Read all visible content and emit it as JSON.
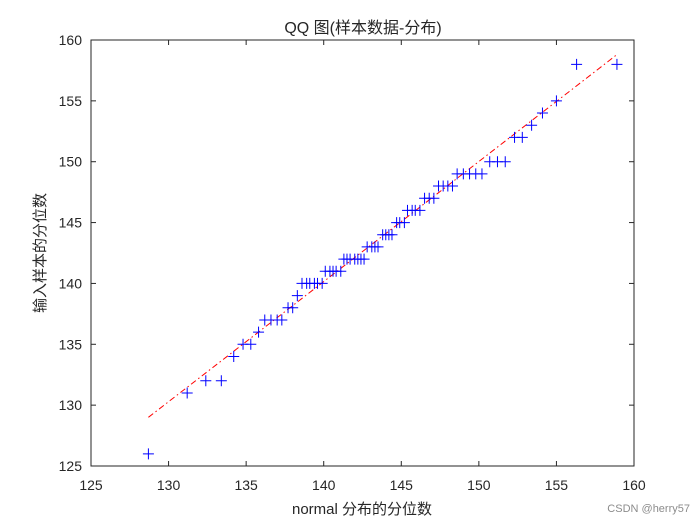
{
  "chart_data": {
    "type": "scatter",
    "title": "QQ 图(样本数据-分布)",
    "xlabel": "normal 分布的分位数",
    "ylabel": "输入样本的分位数",
    "xlim": [
      125,
      160
    ],
    "ylim": [
      125,
      160
    ],
    "xticks": [
      125,
      130,
      135,
      140,
      145,
      150,
      155,
      160
    ],
    "yticks": [
      125,
      130,
      135,
      140,
      145,
      150,
      155,
      160
    ],
    "grid": false,
    "marker": "+",
    "marker_color": "#0000ff",
    "reference_line": {
      "style": "dash-dot",
      "color": "#ff0000",
      "x": [
        128.7,
        158.9
      ],
      "y": [
        129.0,
        158.8
      ]
    },
    "points": {
      "x": [
        128.7,
        131.2,
        132.4,
        133.4,
        134.2,
        134.8,
        135.3,
        135.8,
        136.2,
        136.6,
        137.0,
        137.3,
        137.7,
        138.0,
        138.3,
        138.6,
        138.9,
        139.1,
        139.4,
        139.6,
        139.9,
        140.1,
        140.4,
        140.6,
        140.8,
        141.1,
        141.3,
        141.5,
        141.7,
        142.0,
        142.2,
        142.4,
        142.6,
        142.8,
        143.1,
        143.3,
        143.5,
        143.8,
        144.0,
        144.2,
        144.4,
        144.7,
        144.9,
        145.2,
        145.4,
        145.7,
        145.9,
        146.2,
        146.5,
        146.8,
        147.1,
        147.4,
        147.7,
        148.0,
        148.3,
        148.6,
        149.0,
        149.4,
        149.8,
        150.2,
        150.7,
        151.2,
        151.7,
        152.3,
        152.8,
        153.4,
        154.1,
        155.0,
        156.3,
        158.9
      ],
      "y": [
        126,
        131,
        132,
        132,
        134,
        135,
        135,
        136,
        137,
        137,
        137,
        137,
        138,
        138,
        139,
        140,
        140,
        140,
        140,
        140,
        140,
        141,
        141,
        141,
        141,
        141,
        142,
        142,
        142,
        142,
        142,
        142,
        142,
        143,
        143,
        143,
        143,
        144,
        144,
        144,
        144,
        145,
        145,
        145,
        146,
        146,
        146,
        146,
        147,
        147,
        147,
        148,
        148,
        148,
        148,
        149,
        149,
        149,
        149,
        149,
        150,
        150,
        150,
        152,
        152,
        153,
        154,
        155,
        158,
        158
      ]
    }
  },
  "watermark": "CSDN @herry57"
}
